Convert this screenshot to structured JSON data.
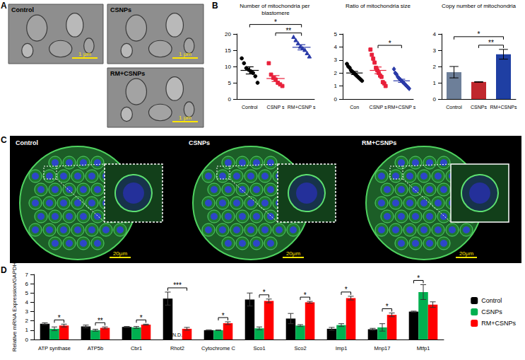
{
  "chart_data": [
    {
      "panel": "A",
      "type": "image",
      "images": [
        {
          "label": "Control",
          "scale_bar": "1 μm"
        },
        {
          "label": "CSNPs",
          "scale_bar": "1 μm"
        },
        {
          "label": "RM+CSNPs",
          "scale_bar": "1 μm"
        }
      ]
    },
    {
      "panel": "B",
      "type": "scatter",
      "title": "Number of mitochondria per blastomere",
      "categories": [
        "Control",
        "CSNP s",
        "RM+CSNP s"
      ],
      "colors": [
        "#000000",
        "#e8203a",
        "#2a3aa8"
      ],
      "markers": [
        "circle",
        "square",
        "triangle"
      ],
      "values": [
        [
          12.5,
          11,
          9.5,
          9,
          8.5,
          8,
          7,
          5
        ],
        [
          11,
          7.5,
          6.5,
          6,
          5,
          4.5,
          4
        ],
        [
          19,
          18,
          17,
          16,
          15.5,
          15,
          14,
          13
        ]
      ],
      "means": [
        8.8,
        6.3,
        15.9
      ],
      "sems": [
        1.1,
        0.9,
        0.8
      ],
      "ylim": [
        0,
        20
      ],
      "yticks": [
        0,
        5,
        10,
        15,
        20
      ],
      "significance": [
        {
          "pair": [
            0,
            2
          ],
          "label": "*"
        },
        {
          "pair": [
            1,
            2
          ],
          "label": "**"
        }
      ]
    },
    {
      "type": "scatter",
      "title": "Ratio of mitochondria size",
      "categories": [
        "Con",
        "CSNP s",
        "RM+CSNP s"
      ],
      "colors": [
        "#000000",
        "#e8203a",
        "#2a3aa8"
      ],
      "markers": [
        "circle",
        "square",
        "diamond"
      ],
      "values": [
        [
          2.7,
          2.5,
          2.4,
          2.2,
          2.1,
          2.0,
          1.9,
          1.8,
          1.7,
          1.6,
          1.5,
          1.4
        ],
        [
          3.8,
          3.4,
          3.1,
          2.8,
          2.4,
          2.2,
          2.0,
          1.8,
          1.7,
          1.3,
          1.2,
          1.0
        ],
        [
          2.3,
          2.0,
          1.9,
          1.7,
          1.6,
          1.5,
          1.4,
          1.3,
          1.2,
          1.1,
          1.0,
          0.9,
          0.8
        ]
      ],
      "means": [
        2.0,
        2.2,
        1.4
      ],
      "sems": [
        0.12,
        0.26,
        0.12
      ],
      "ylim": [
        0,
        5
      ],
      "yticks": [
        0,
        1,
        2,
        3,
        4,
        5
      ],
      "significance": [
        {
          "pair": [
            1,
            2
          ],
          "label": "*"
        }
      ]
    },
    {
      "type": "bar",
      "title": "Copy number of mitochondria",
      "categories": [
        "Control",
        "CSNPs",
        "RM+CSNPs"
      ],
      "values": [
        1.65,
        1.05,
        2.75
      ],
      "errors": [
        0.35,
        0.02,
        0.3
      ],
      "colors": [
        "#6d7f99",
        "#c0272d",
        "#1f3fa3"
      ],
      "ylim": [
        0,
        4
      ],
      "yticks": [
        0,
        1,
        2,
        3,
        4
      ],
      "significance": [
        {
          "pair": [
            0,
            2
          ],
          "label": "*"
        },
        {
          "pair": [
            1,
            2
          ],
          "label": "**"
        }
      ]
    },
    {
      "panel": "C",
      "type": "image",
      "images": [
        {
          "label": "Control",
          "scale_bar": "20μm"
        },
        {
          "label": "CSNPs",
          "scale_bar": "20μm"
        },
        {
          "label": "RM+CSNPs",
          "scale_bar": "20μm"
        }
      ]
    },
    {
      "panel": "D",
      "type": "bar",
      "ylabel": "Relative mRNA Expression/GAPDH",
      "categories": [
        "ATP synthase",
        "ATP5b",
        "Cbr1",
        "Rhot2",
        "Cytochrome C",
        "Sco1",
        "Sco2",
        "Imp1",
        "Mnp17",
        "Mtfp1"
      ],
      "series": [
        {
          "name": "Control",
          "color": "#000000",
          "values": [
            1.7,
            1.4,
            1.35,
            4.4,
            1.0,
            4.3,
            2.25,
            1.15,
            1.1,
            3.0
          ],
          "errors": [
            0.1,
            0.15,
            0.05,
            0.7,
            0.03,
            0.7,
            0.55,
            0.15,
            0.1,
            0.05
          ]
        },
        {
          "name": "CSNPs",
          "color": "#00b050",
          "values": [
            1.15,
            1.0,
            1.3,
            null,
            1.0,
            1.2,
            1.5,
            1.55,
            1.3,
            5.1
          ],
          "errors": [
            0.2,
            0.1,
            0.1,
            null,
            0.03,
            0.15,
            0.1,
            0.15,
            0.4,
            0.8
          ]
        },
        {
          "name": "RM+CSNPs",
          "color": "#ff0000",
          "values": [
            1.5,
            1.25,
            1.6,
            1.15,
            1.75,
            4.15,
            4.0,
            4.45,
            2.65,
            3.75
          ],
          "errors": [
            0.15,
            0.1,
            0.05,
            0.15,
            0.15,
            0.2,
            0.1,
            0.2,
            0.2,
            0.3
          ]
        }
      ],
      "ylim": [
        0,
        7
      ],
      "yticks": [
        0,
        1,
        2,
        3,
        4,
        5,
        6,
        7
      ],
      "legend": "right",
      "significance": [
        {
          "category": "ATP synthase",
          "pair": [
            1,
            2
          ],
          "label": "*"
        },
        {
          "category": "ATP5b",
          "pair": [
            1,
            2
          ],
          "label": "**"
        },
        {
          "category": "Cbr1",
          "pair": [
            1,
            2
          ],
          "label": "*"
        },
        {
          "category": "Rhot2",
          "pair": [
            0,
            2
          ],
          "label": "***"
        },
        {
          "category": "Cytochrome C",
          "pair": [
            1,
            2
          ],
          "label": "*"
        },
        {
          "category": "Sco1",
          "pair": [
            1,
            2
          ],
          "label": "*"
        },
        {
          "category": "Sco2",
          "pair": [
            1,
            2
          ],
          "label": "*"
        },
        {
          "category": "Imp1",
          "pair": [
            1,
            2
          ],
          "label": "*"
        },
        {
          "category": "Mnp17",
          "pair": [
            1,
            2
          ],
          "label": "*"
        },
        {
          "category": "Mtfp1",
          "pair": [
            0,
            1
          ],
          "label": "*"
        }
      ],
      "annotations": [
        {
          "text": "N.D.",
          "category": "Rhot2",
          "series": "CSNPs"
        }
      ]
    }
  ]
}
